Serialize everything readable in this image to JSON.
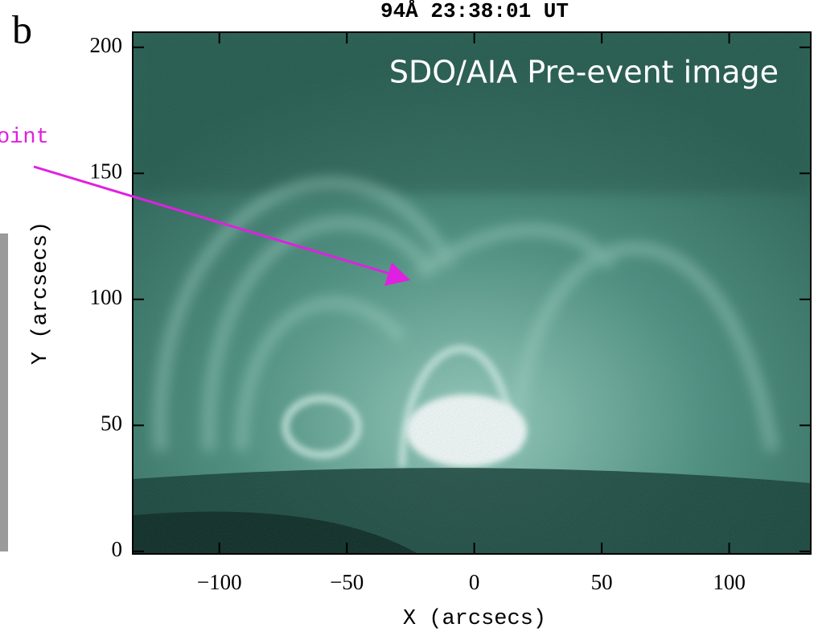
{
  "chart_data": {
    "type": "image",
    "panel_label": "b",
    "title": "94Å  23:38:01 UT",
    "annotation": "SDO/AIA Pre-event image",
    "cropped_label": "oint",
    "xlabel": "X (arcsecs)",
    "ylabel": "Y (arcsecs)",
    "xlim": [
      -134,
      132
    ],
    "ylim": [
      -1,
      206
    ],
    "xticks": [
      {
        "value": -100,
        "label": "−100"
      },
      {
        "value": -50,
        "label": "−50"
      },
      0,
      50,
      100
    ],
    "yticks": [
      0,
      50,
      100,
      150,
      200
    ]
  }
}
